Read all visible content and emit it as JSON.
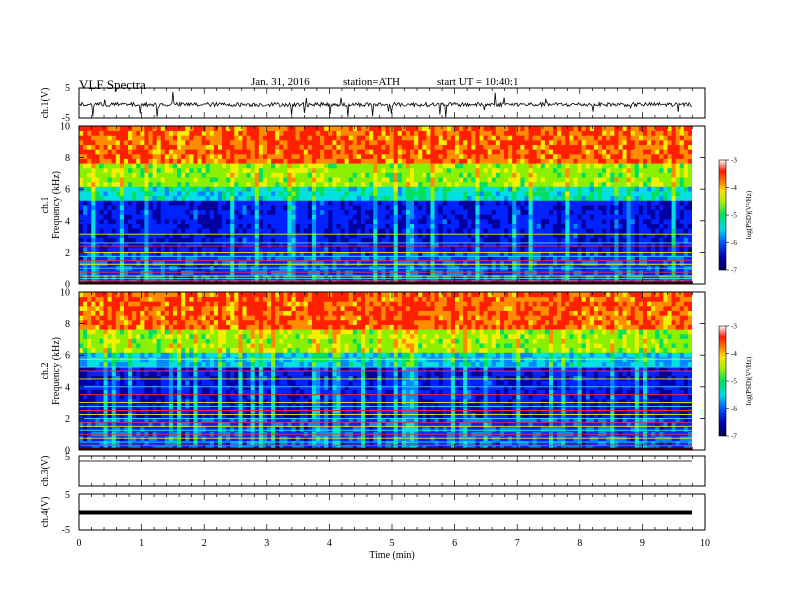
{
  "header": {
    "title": "VLF Spectra",
    "date": "Jan. 31, 2016",
    "station": "station=ATH",
    "start_ut": "start UT = 10:40:1"
  },
  "chart_data": [
    {
      "type": "line",
      "panel": "ch1-waveform",
      "ylabel": "ch.1(V)",
      "ylim": [
        -5,
        5
      ],
      "yticks": [
        "5",
        "-5"
      ],
      "xlim": [
        0,
        10
      ],
      "baseline": -0.5,
      "data_span_min": [
        0,
        9.8
      ]
    },
    {
      "type": "heatmap",
      "panel": "ch1-spectrogram",
      "ylabel": "ch.1 Frequency (kHz)",
      "ylim": [
        0,
        10
      ],
      "yticks": [
        "0",
        "2",
        "4",
        "6",
        "8",
        "10"
      ],
      "xlim": [
        0,
        10
      ],
      "colorbar": {
        "label": "log(PSD)(V²/Hz)",
        "range": [
          -7,
          -3
        ],
        "ticks": [
          "-3",
          "-4",
          "-5",
          "-6",
          "-7"
        ]
      },
      "line_freqs_khz": [
        0.2,
        0.35,
        0.5,
        0.75,
        1.0,
        1.25,
        1.5,
        1.75,
        2.0,
        2.4,
        2.6,
        3.15
      ]
    },
    {
      "type": "heatmap",
      "panel": "ch2-spectrogram",
      "ylabel": "ch.2 Frequency (kHz)",
      "ylim": [
        0,
        10
      ],
      "yticks": [
        "0",
        "2",
        "4",
        "6",
        "8",
        "10"
      ],
      "xlim": [
        0,
        10
      ],
      "colorbar": {
        "label": "log(PSD)(V²/Hz)",
        "range": [
          -7,
          -3
        ],
        "ticks": [
          "-3",
          "-4",
          "-5",
          "-6",
          "-7"
        ]
      },
      "line_freqs_khz": [
        0.3,
        0.5,
        0.75,
        1.0,
        1.25,
        1.5,
        1.75,
        2.0,
        2.25,
        2.5,
        2.75,
        3.0,
        3.5,
        4.0,
        4.5,
        5.0,
        5.25,
        5.75
      ]
    },
    {
      "type": "line",
      "panel": "ch3-waveform",
      "ylabel": "ch.3(V)",
      "ylim": [
        -5,
        5
      ],
      "yticks": [
        "5"
      ],
      "xlim": [
        0,
        10
      ],
      "baseline": 5.0
    },
    {
      "type": "line",
      "panel": "ch4-waveform",
      "ylabel": "ch.4(V)",
      "ylim": [
        -5,
        5
      ],
      "yticks": [
        "5",
        "-5"
      ],
      "xlim": [
        0,
        10
      ],
      "baseline": 0.0
    }
  ],
  "xaxis": {
    "label": "Time (min)",
    "ticks": [
      "0",
      "1",
      "2",
      "3",
      "4",
      "5",
      "6",
      "7",
      "8",
      "9",
      "10"
    ]
  },
  "colors": {
    "scale": [
      "#000050",
      "#0000a0",
      "#0022ff",
      "#0088ff",
      "#00e0e0",
      "#00e060",
      "#8af000",
      "#f0f000",
      "#ff8c00",
      "#ff2000",
      "#ffd0d0",
      "#ffffff"
    ]
  }
}
